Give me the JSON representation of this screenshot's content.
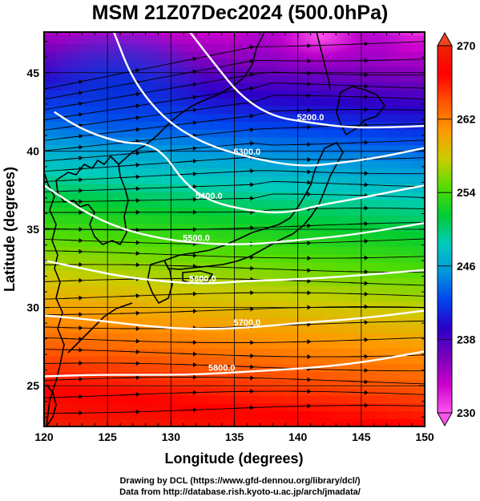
{
  "title": "MSM 21Z07Dec2024 (500.0hPa)",
  "footer": {
    "line1": "Drawing by DCL (https://www.gfd-dennou.org/library/dcl/)",
    "line2": "Data from http://database.rish.kyoto-u.ac.jp/arch/jmadata/"
  },
  "chart_data": {
    "type": "heatmap",
    "xlabel": "Longitude (degrees)",
    "ylabel": "Latitude  (degrees)",
    "xlim": [
      120,
      150
    ],
    "ylim": [
      22.4,
      47.6
    ],
    "x_ticks": [
      120,
      125,
      130,
      135,
      140,
      145,
      150
    ],
    "y_ticks": [
      25,
      30,
      35,
      40,
      45
    ],
    "colorbar": {
      "min": 230,
      "max": 270,
      "ticks": [
        230,
        238,
        246,
        254,
        262,
        270
      ],
      "colors": [
        "#ff55ee",
        "#cc00cc",
        "#7700bb",
        "#2a00c8",
        "#0044ee",
        "#0099dd",
        "#00ccbb",
        "#00cc33",
        "#55dd00",
        "#cccc00",
        "#ff9900",
        "#ff5500",
        "#ff0000",
        "#ee2200"
      ]
    },
    "contours": [
      {
        "label": "5200.0",
        "points": [
          [
            131.5,
            47.6
          ],
          [
            133.5,
            45.5
          ],
          [
            135.5,
            43.5
          ],
          [
            138,
            42.2
          ],
          [
            141,
            41.8
          ],
          [
            144,
            41.5
          ],
          [
            147,
            41.5
          ],
          [
            150,
            41.6
          ]
        ]
      },
      {
        "label": "5300.0",
        "points": [
          [
            125.5,
            47.6
          ],
          [
            127,
            44.5
          ],
          [
            129.5,
            42
          ],
          [
            132.5,
            40.5
          ],
          [
            136,
            39.6
          ],
          [
            140,
            39
          ],
          [
            143,
            39.2
          ],
          [
            146.5,
            39.6
          ],
          [
            150,
            40.2
          ]
        ]
      },
      {
        "label": "5400.0",
        "points": [
          [
            120.8,
            42.5
          ],
          [
            122.5,
            41.6
          ],
          [
            124.5,
            40.9
          ],
          [
            126.5,
            40.5
          ],
          [
            128,
            40.5
          ],
          [
            129.5,
            39.8
          ],
          [
            131,
            38
          ],
          [
            133,
            36.8
          ],
          [
            136,
            36.2
          ],
          [
            139,
            36
          ],
          [
            142,
            36.6
          ],
          [
            145,
            37
          ],
          [
            148,
            37.5
          ],
          [
            150,
            37.8
          ]
        ]
      },
      {
        "label": "5500.0",
        "points": [
          [
            120,
            37.8
          ],
          [
            123,
            36.2
          ],
          [
            125.5,
            35.2
          ],
          [
            128.5,
            34.5
          ],
          [
            132,
            34.1
          ],
          [
            136,
            34
          ],
          [
            140,
            34.3
          ],
          [
            144,
            34.6
          ],
          [
            150,
            35.4
          ]
        ]
      },
      {
        "label": "5600.0",
        "points": [
          [
            120,
            33
          ],
          [
            123,
            32.5
          ],
          [
            126,
            32
          ],
          [
            129,
            31.7
          ],
          [
            132.5,
            31.5
          ],
          [
            136,
            31.7
          ],
          [
            140,
            31.8
          ],
          [
            144,
            32
          ],
          [
            150,
            32.4
          ]
        ]
      },
      {
        "label": "5700.0",
        "points": [
          [
            120,
            29.5
          ],
          [
            124,
            29.2
          ],
          [
            128,
            28.8
          ],
          [
            132,
            28.6
          ],
          [
            136,
            28.7
          ],
          [
            140,
            29
          ],
          [
            145,
            29.3
          ],
          [
            150,
            29.8
          ]
        ]
      },
      {
        "label": "5800.0",
        "points": [
          [
            120,
            25.6
          ],
          [
            124,
            25.7
          ],
          [
            128,
            25.7
          ],
          [
            131,
            25.7
          ],
          [
            134,
            25.8
          ],
          [
            138,
            26
          ],
          [
            142,
            26.2
          ],
          [
            146,
            26.6
          ],
          [
            150,
            27.2
          ]
        ]
      }
    ],
    "temperature_field": "bands decreasing poleward: warm (>262) south of 27N, cold (<238) near 40-46N 130-150E, coldest (<234) near 143E 47N",
    "wind": "streamlines with arrows, predominantly westerly, northwesterly in the north-west"
  }
}
